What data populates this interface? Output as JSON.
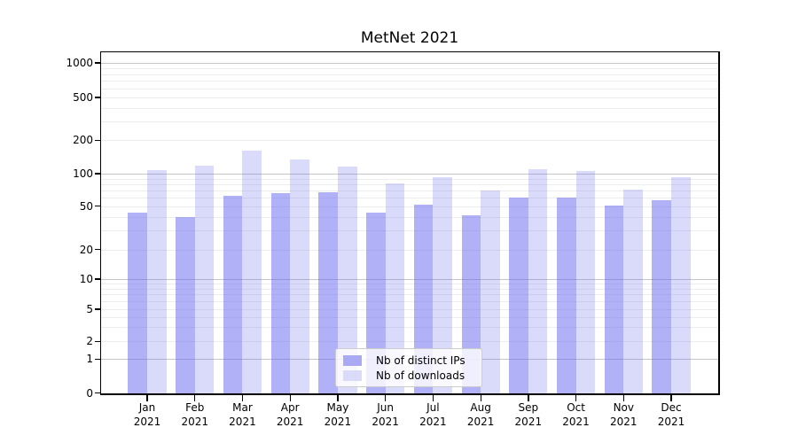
{
  "title": "MetNet 2021",
  "chart_data": {
    "type": "bar",
    "title": "MetNet 2021",
    "categories": [
      "Jan",
      "Feb",
      "Mar",
      "Apr",
      "May",
      "Jun",
      "Jul",
      "Aug",
      "Sep",
      "Oct",
      "Nov",
      "Dec"
    ],
    "year_label": "2021",
    "series": [
      {
        "name": "Nb of distinct IPs",
        "key": "distinct-ips",
        "color": "#6464f0",
        "alpha": 0.5,
        "solid_color": "#a9a9f4",
        "values": [
          44,
          40,
          62,
          66,
          67,
          44,
          52,
          41,
          60,
          60,
          51,
          57
        ]
      },
      {
        "name": "Nb of downloads",
        "key": "downloads",
        "color": "#6464f0",
        "alpha": 0.24,
        "solid_color": "#dadaf9",
        "values": [
          108,
          118,
          160,
          134,
          115,
          82,
          92,
          70,
          110,
          105,
          71,
          93
        ]
      }
    ],
    "yscale": "symlog",
    "y_ticks": [
      0,
      1,
      2,
      5,
      10,
      20,
      50,
      100,
      200,
      500,
      1000
    ],
    "ylim": [
      0,
      1250
    ],
    "grid": true,
    "legend_position": "lower center",
    "grid_major_color": "#c6c6c6",
    "grid_minor_color": "#ededed"
  }
}
